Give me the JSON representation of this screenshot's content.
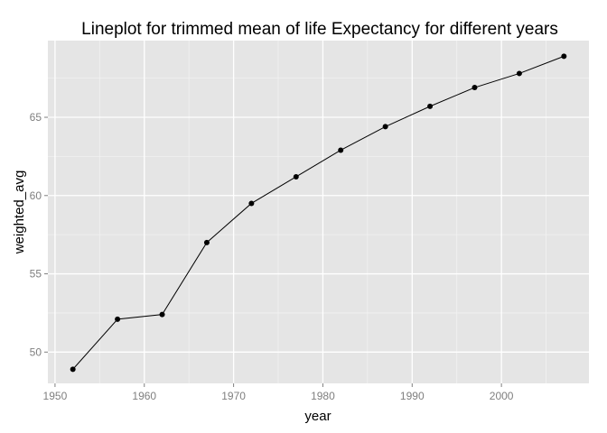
{
  "chart_data": {
    "type": "line",
    "title": "Lineplot for trimmed mean of life Expectancy for different years",
    "xlabel": "year",
    "ylabel": "weighted_avg",
    "xlim": [
      1949.2,
      2009.8
    ],
    "ylim": [
      48.0,
      69.9
    ],
    "x_ticks": [
      1950,
      1960,
      1970,
      1980,
      1990,
      2000
    ],
    "y_ticks": [
      50,
      55,
      60,
      65
    ],
    "x_tick_labels": [
      "1950",
      "1960",
      "1970",
      "1980",
      "1990",
      "2000"
    ],
    "y_tick_labels": [
      "50",
      "55",
      "60",
      "65"
    ],
    "grid": true,
    "legend": "none",
    "series": [
      {
        "x": [
          1952,
          1957,
          1962,
          1967,
          1972,
          1977,
          1982,
          1987,
          1992,
          1997,
          2002,
          2007
        ],
        "y": [
          48.9,
          52.1,
          52.4,
          57.0,
          59.5,
          61.2,
          62.9,
          64.4,
          65.7,
          66.9,
          67.8,
          68.9
        ]
      }
    ],
    "colors": {
      "panel_background": "#e5e5e5",
      "grid_major": "#ffffff",
      "grid_minor": "#f2f2f2",
      "line": "#000000",
      "points": "#000000",
      "tick_text": "#7f7f7f"
    }
  }
}
